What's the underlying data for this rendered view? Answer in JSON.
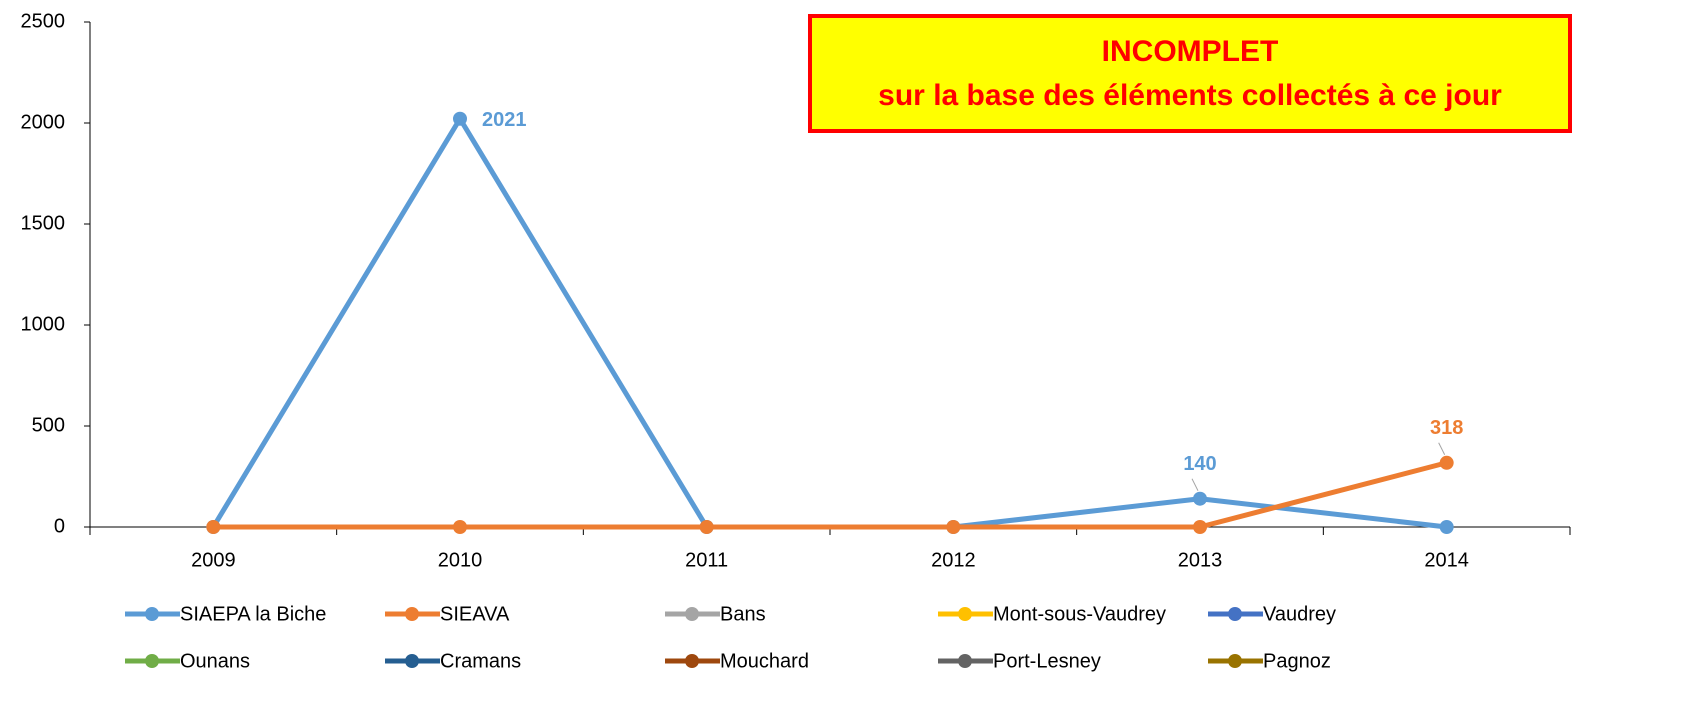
{
  "chart_data": {
    "type": "line",
    "categories": [
      "2009",
      "2010",
      "2011",
      "2012",
      "2013",
      "2014"
    ],
    "series": [
      {
        "name": "SIAEPA la Biche",
        "color": "#5b9bd5",
        "values": [
          0,
          2021,
          0,
          0,
          140,
          0
        ],
        "value_labels": [
          null,
          "2021",
          null,
          null,
          "140",
          null
        ]
      },
      {
        "name": "SIEAVA",
        "color": "#ed7d31",
        "values": [
          0,
          0,
          0,
          0,
          0,
          318
        ],
        "value_labels": [
          null,
          null,
          null,
          null,
          null,
          "318"
        ]
      },
      {
        "name": "Bans",
        "color": "#a5a5a5",
        "values": [
          null,
          null,
          null,
          null,
          null,
          null
        ]
      },
      {
        "name": "Mont-sous-Vaudrey",
        "color": "#ffc000",
        "values": [
          null,
          null,
          null,
          null,
          null,
          null
        ]
      },
      {
        "name": "Vaudrey",
        "color": "#4472c4",
        "values": [
          null,
          null,
          null,
          null,
          null,
          null
        ]
      },
      {
        "name": "Ounans",
        "color": "#70ad47",
        "values": [
          null,
          null,
          null,
          null,
          null,
          null
        ]
      },
      {
        "name": "Cramans",
        "color": "#255e91",
        "values": [
          null,
          null,
          null,
          null,
          null,
          null
        ]
      },
      {
        "name": "Mouchard",
        "color": "#9e480e",
        "values": [
          null,
          null,
          null,
          null,
          null,
          null
        ]
      },
      {
        "name": "Port-Lesney",
        "color": "#636363",
        "values": [
          null,
          null,
          null,
          null,
          null,
          null
        ]
      },
      {
        "name": "Pagnoz",
        "color": "#997300",
        "values": [
          null,
          null,
          null,
          null,
          null,
          null
        ]
      }
    ],
    "annotations": [
      "INCOMPLET",
      "sur la base des éléments collectés à ce jour"
    ],
    "ylim": [
      0,
      2500
    ],
    "yticks": [
      0,
      500,
      1000,
      1500,
      2000,
      2500
    ],
    "grid": false,
    "legend": "bottom"
  }
}
